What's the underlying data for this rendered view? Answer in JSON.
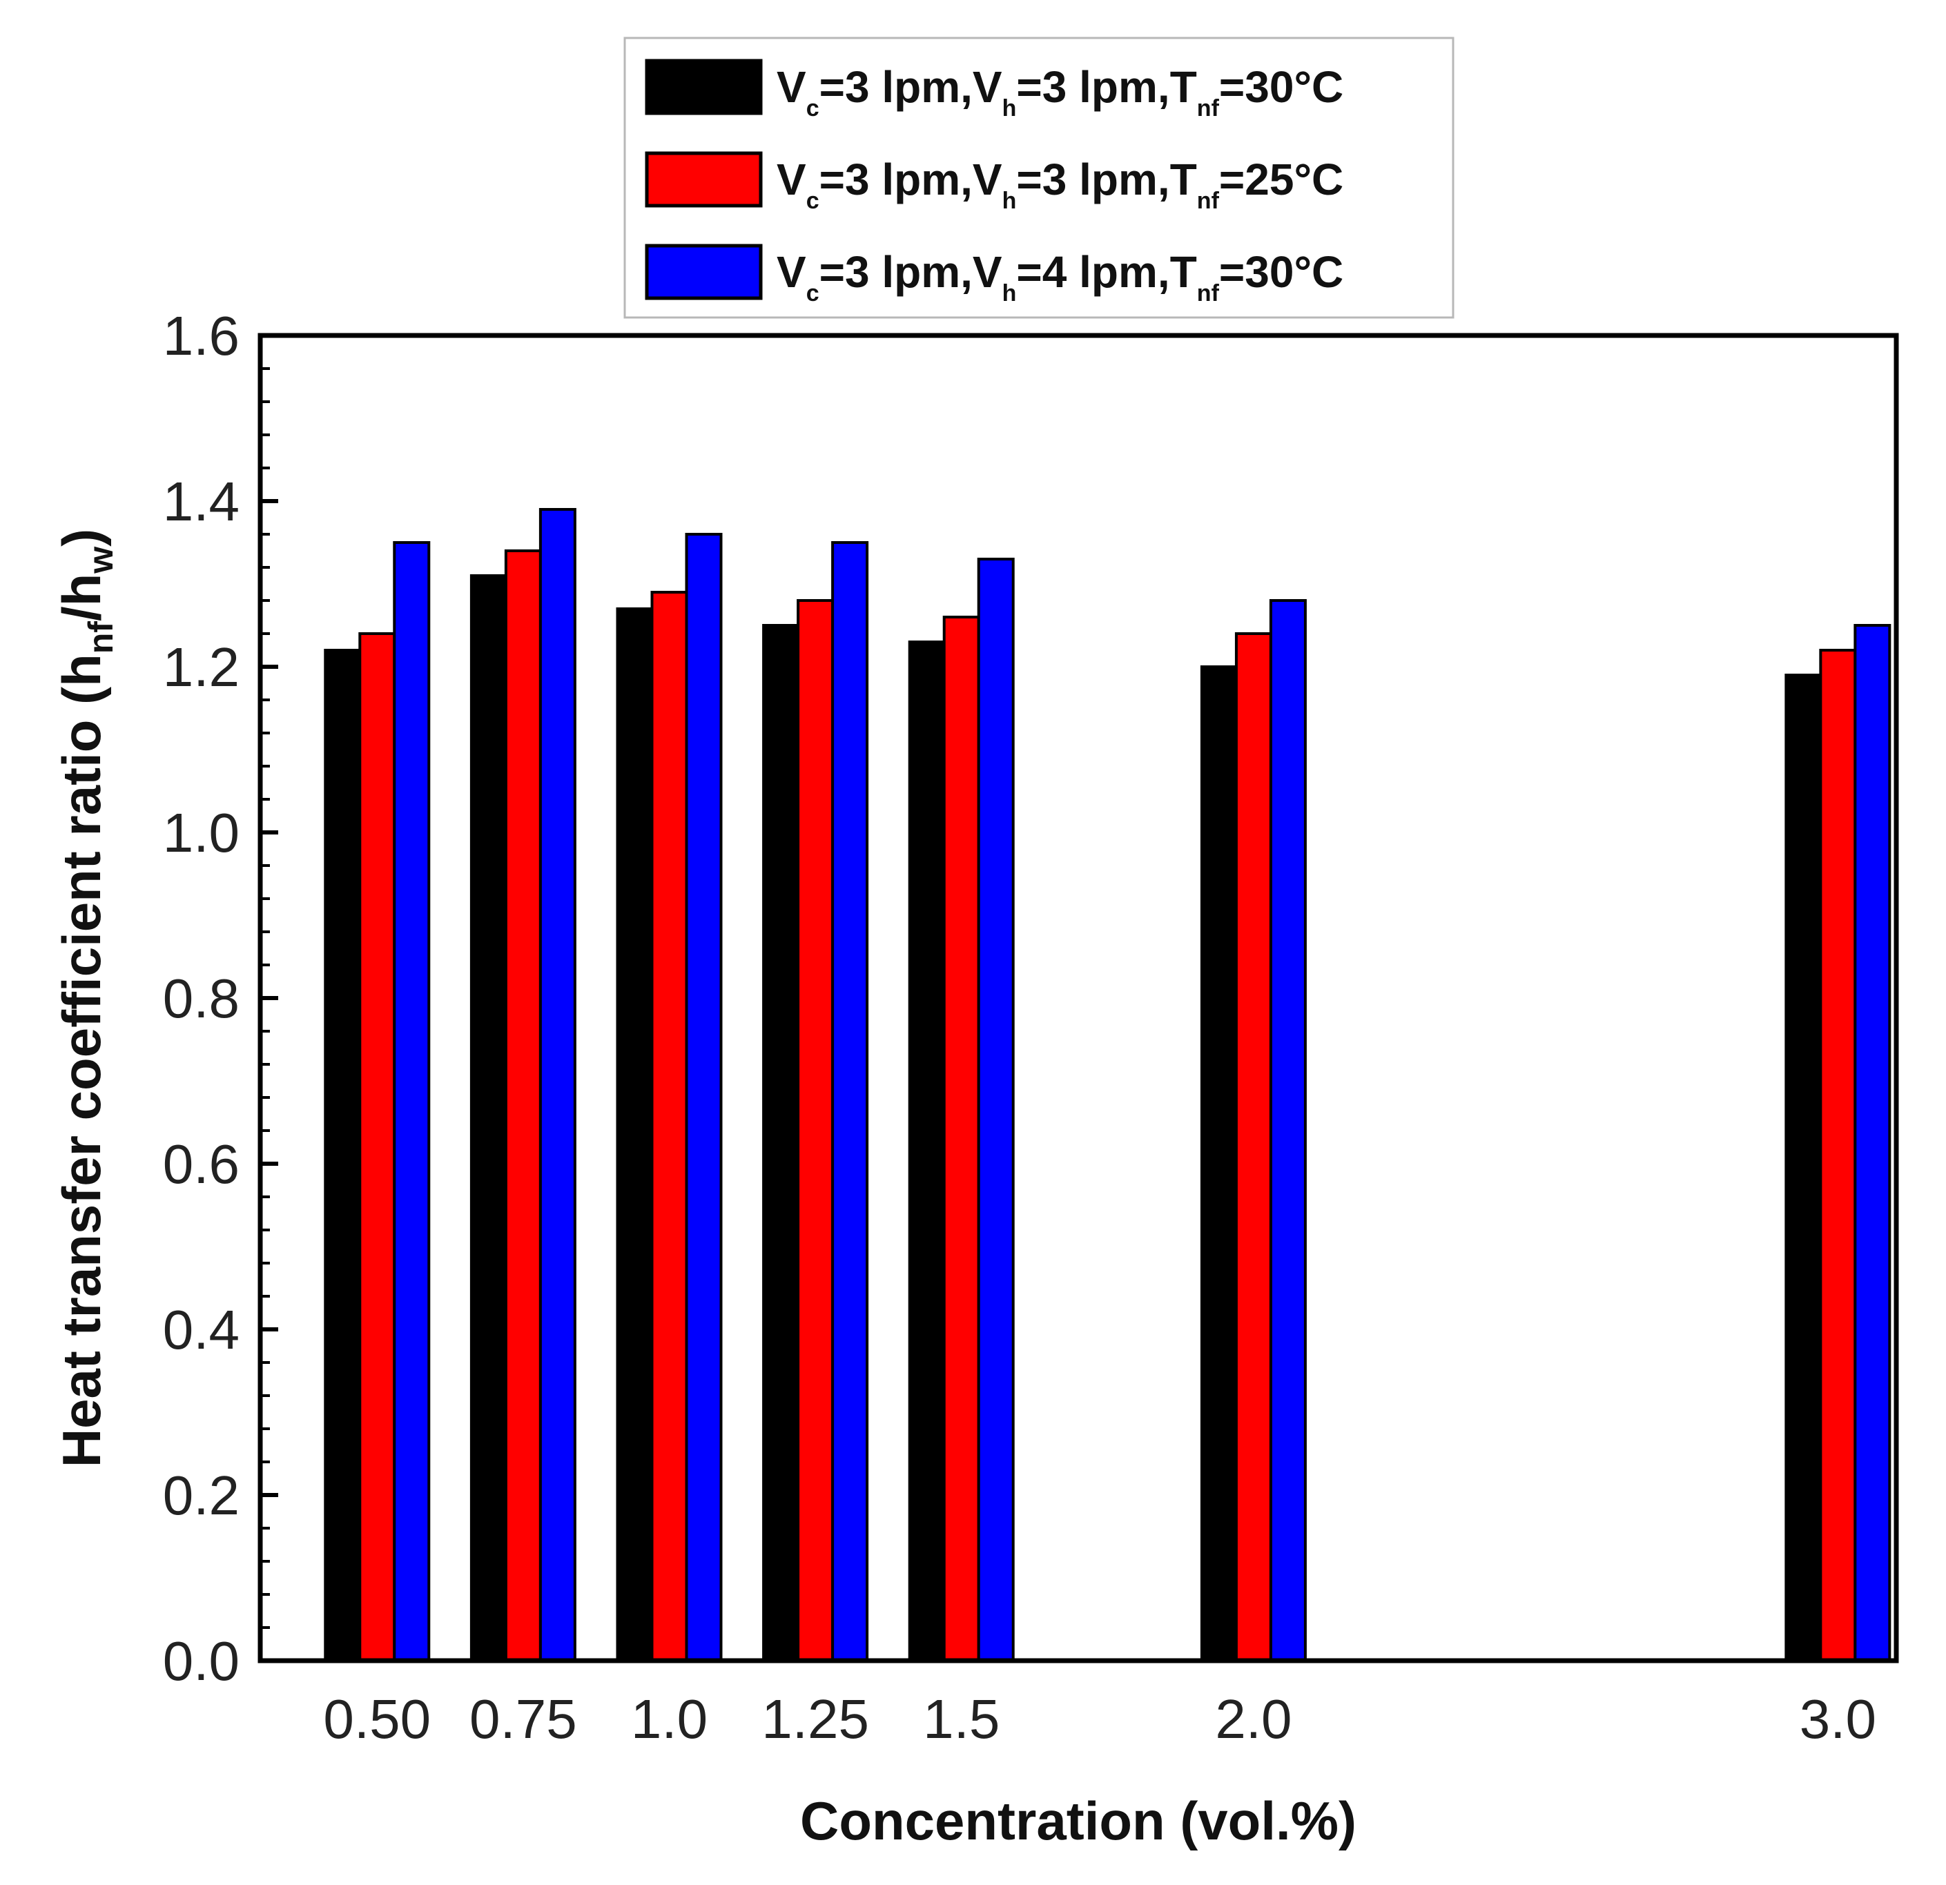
{
  "chart_data": {
    "type": "bar",
    "title": "",
    "xlabel": "Concentration (vol.%)",
    "ylabel": {
      "main": "Heat transfer coefficient ratio (h",
      "sub1": "nf",
      "mid": "/h",
      "sub2": "w",
      "end": ")"
    },
    "categories": [
      "0.50",
      "0.75",
      "1.0",
      "1.25",
      "1.5",
      "2.0",
      "3.0"
    ],
    "x_positions": [
      0.5,
      0.75,
      1.0,
      1.25,
      1.5,
      2.0,
      3.0
    ],
    "xlim": [
      0.3,
      3.1
    ],
    "ylim": [
      0,
      1.6
    ],
    "yticks": [
      "0.0",
      "0.2",
      "0.4",
      "0.6",
      "0.8",
      "1.0",
      "1.2",
      "1.4",
      "1.6"
    ],
    "legend_position": "top-center",
    "series": [
      {
        "name": "Vc=3 lpm,Vh=3 lpm,Tnf=30°C",
        "label_parts": [
          "V",
          "c",
          "=3 lpm,V",
          "h",
          "=3 lpm,T",
          "nf",
          "=30°C"
        ],
        "color": "#000000",
        "values": [
          1.22,
          1.31,
          1.27,
          1.25,
          1.23,
          1.2,
          1.19
        ]
      },
      {
        "name": "Vc=3 lpm,Vh=3 lpm,Tnf=25°C",
        "label_parts": [
          "V",
          "c",
          "=3 lpm,V",
          "h",
          "=3 lpm,T",
          "nf",
          "=25°C"
        ],
        "color": "#ff0000",
        "values": [
          1.24,
          1.34,
          1.29,
          1.28,
          1.26,
          1.24,
          1.22
        ]
      },
      {
        "name": "Vc=3 lpm,Vh=4 lpm,Tnf=30°C",
        "label_parts": [
          "V",
          "c",
          "=3 lpm,V",
          "h",
          "=4 lpm,T",
          "nf",
          "=30°C"
        ],
        "color": "#0000ff",
        "values": [
          1.35,
          1.39,
          1.36,
          1.35,
          1.33,
          1.28,
          1.25
        ]
      }
    ]
  }
}
